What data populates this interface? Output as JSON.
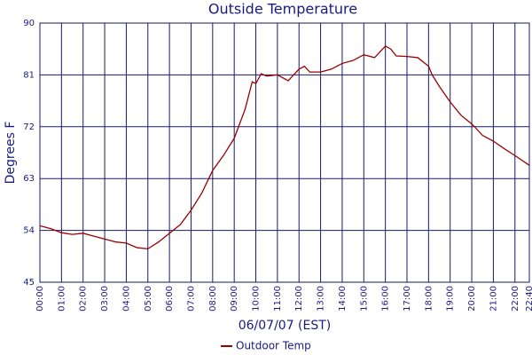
{
  "chart_data": {
    "type": "line",
    "title": "Outside Temperature",
    "x_label": "06/07/07 (EST)",
    "y_label": "Degrees F",
    "x": [
      0,
      30,
      60,
      90,
      120,
      150,
      180,
      210,
      240,
      270,
      300,
      330,
      360,
      390,
      420,
      450,
      480,
      510,
      540,
      570,
      590,
      600,
      615,
      630,
      660,
      690,
      720,
      735,
      750,
      780,
      810,
      840,
      870,
      900,
      930,
      960,
      975,
      990,
      1020,
      1050,
      1080,
      1090,
      1110,
      1140,
      1170,
      1200,
      1230,
      1260,
      1290,
      1320,
      1360
    ],
    "series": [
      {
        "name": "Outdoor Temp",
        "color": "#990000",
        "values": [
          54.8,
          54.3,
          53.6,
          53.3,
          53.5,
          53.0,
          52.5,
          52.0,
          51.8,
          51.0,
          50.8,
          52.0,
          53.5,
          55.0,
          57.5,
          60.5,
          64.4,
          67.0,
          70.0,
          75.0,
          79.8,
          79.5,
          81.2,
          80.8,
          81.0,
          80.0,
          82.0,
          82.5,
          81.5,
          81.5,
          82.0,
          83.0,
          83.5,
          84.5,
          84.0,
          86.0,
          85.5,
          84.3,
          84.2,
          84.0,
          82.5,
          81.0,
          79.0,
          76.3,
          74.0,
          72.5,
          70.5,
          69.5,
          68.2,
          67.0,
          65.3
        ]
      }
    ],
    "xlim": [
      0,
      1360
    ],
    "xticks": [
      {
        "value": 0,
        "label": "00:00"
      },
      {
        "value": 60,
        "label": "01:00"
      },
      {
        "value": 120,
        "label": "02:00"
      },
      {
        "value": 180,
        "label": "03:00"
      },
      {
        "value": 240,
        "label": "04:00"
      },
      {
        "value": 300,
        "label": "05:00"
      },
      {
        "value": 360,
        "label": "06:00"
      },
      {
        "value": 420,
        "label": "07:00"
      },
      {
        "value": 480,
        "label": "08:00"
      },
      {
        "value": 540,
        "label": "09:00"
      },
      {
        "value": 600,
        "label": "10:00"
      },
      {
        "value": 660,
        "label": "11:00"
      },
      {
        "value": 720,
        "label": "12:00"
      },
      {
        "value": 780,
        "label": "13:00"
      },
      {
        "value": 840,
        "label": "14:00"
      },
      {
        "value": 900,
        "label": "15:00"
      },
      {
        "value": 960,
        "label": "16:00"
      },
      {
        "value": 1020,
        "label": "17:00"
      },
      {
        "value": 1080,
        "label": "18:00"
      },
      {
        "value": 1140,
        "label": "19:00"
      },
      {
        "value": 1200,
        "label": "20:00"
      },
      {
        "value": 1260,
        "label": "21:00"
      },
      {
        "value": 1320,
        "label": "22:00"
      },
      {
        "value": 1360,
        "label": "22:40"
      }
    ],
    "ylim": [
      45,
      90
    ],
    "yticks": [
      45,
      54,
      63,
      72,
      81,
      90
    ],
    "grid": true
  }
}
